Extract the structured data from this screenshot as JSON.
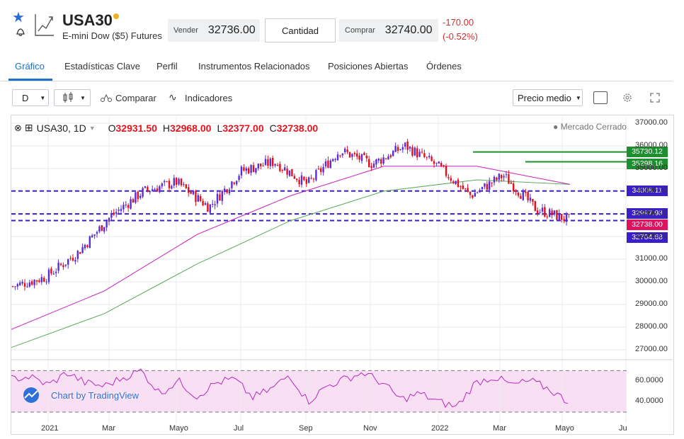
{
  "header": {
    "symbol": "USA30",
    "description": "E-mini Dow ($5) Futures",
    "sell_label": "Vender",
    "sell_price": "32736.00",
    "quantity_label": "Cantidad",
    "buy_label": "Comprar",
    "buy_price": "32740.00",
    "change": "-170.00",
    "change_pct": "(-0.52%)"
  },
  "tabs": [
    {
      "label": "Gráfico",
      "active": true
    },
    {
      "label": "Estadísticas Clave"
    },
    {
      "label": "Perfil"
    },
    {
      "label": "Instrumentos Relacionados"
    },
    {
      "label": "Posiciones Abiertas"
    },
    {
      "label": "Órdenes"
    }
  ],
  "toolbar": {
    "interval": "D",
    "compare": "Comparar",
    "indicators": "Indicadores",
    "price_type": "Precio medio"
  },
  "legend": {
    "symbol": "USA30, 1D",
    "open_label": "O",
    "open": "32931.50",
    "high_label": "H",
    "high": "32968.00",
    "low_label": "L",
    "low": "32377.00",
    "close_label": "C",
    "close": "32738.00",
    "market_status": "Mercado Cerrado"
  },
  "price_labels": [
    {
      "text": "35730.12",
      "color": "#1e8f2e"
    },
    {
      "text": "35298.16",
      "color": "#1e8f2e"
    },
    {
      "text": "34008.11",
      "color": "#3a1fc9"
    },
    {
      "text": "32997.98",
      "color": "#3a1fc9"
    },
    {
      "text": "32738.00",
      "color": "#e0115f"
    },
    {
      "text": "32704.68",
      "color": "#3a1fc9"
    }
  ],
  "watermark": "Chart by TradingView",
  "chart_data": {
    "type": "candlestick",
    "y_ticks": [
      "37000.00",
      "36000.00",
      "35000.00",
      "34000.00",
      "33000.00",
      "32000.00",
      "31000.00",
      "30000.00",
      "29000.00",
      "28000.00",
      "27000.00"
    ],
    "ylim": [
      26500,
      37200
    ],
    "x_ticks": [
      "2021",
      "Mar",
      "Mayo",
      "Jul",
      "Sep",
      "Nov",
      "2022",
      "Mar",
      "Mayo",
      "Ju"
    ],
    "series": [
      {
        "name": "Price",
        "type": "candles",
        "x": [
          "2020-12",
          "2021-01",
          "2021-02",
          "2021-03",
          "2021-04",
          "2021-05",
          "2021-06",
          "2021-07",
          "2021-08",
          "2021-09",
          "2021-10",
          "2021-11",
          "2021-12",
          "2022-01",
          "2022-02",
          "2022-03",
          "2022-04",
          "2022-05"
        ],
        "values": [
          29800,
          30200,
          31300,
          32900,
          34000,
          34400,
          33300,
          34900,
          35300,
          34300,
          35800,
          35200,
          36000,
          35100,
          33800,
          34700,
          33200,
          32738
        ]
      },
      {
        "name": "MA fast",
        "color": "#c81fbf",
        "x": [
          "2020-12",
          "2021-03",
          "2021-06",
          "2021-09",
          "2021-12",
          "2022-02",
          "2022-05"
        ],
        "values": [
          27900,
          29600,
          32100,
          33800,
          35100,
          35100,
          34300
        ]
      },
      {
        "name": "MA slow",
        "color": "#5aaa5a",
        "x": [
          "2020-12",
          "2021-03",
          "2021-06",
          "2021-09",
          "2021-12",
          "2022-02",
          "2022-05"
        ],
        "values": [
          27100,
          28600,
          30800,
          32700,
          34000,
          34500,
          34300
        ]
      }
    ],
    "horizontal_lines": [
      {
        "value": 35730.12,
        "color": "#1e8f2e",
        "style": "solid"
      },
      {
        "value": 35298.16,
        "color": "#1e8f2e",
        "style": "solid"
      },
      {
        "value": 34008.11,
        "color": "#3a1fc9",
        "style": "dashed"
      },
      {
        "value": 32997.98,
        "color": "#3a1fc9",
        "style": "dashed"
      },
      {
        "value": 32704.68,
        "color": "#3a1fc9",
        "style": "dashed"
      }
    ],
    "oscillator": {
      "y_ticks": [
        "60.0000",
        "40.0000"
      ],
      "ylim": [
        30,
        75
      ],
      "bands": [
        70,
        30
      ],
      "values": [
        62,
        64,
        56,
        68,
        58,
        55,
        63,
        70,
        48,
        60,
        45,
        58,
        62,
        44,
        52,
        66,
        40,
        55,
        62,
        68,
        58,
        42,
        48,
        40,
        35,
        58,
        64,
        56,
        60,
        52,
        40
      ]
    }
  }
}
